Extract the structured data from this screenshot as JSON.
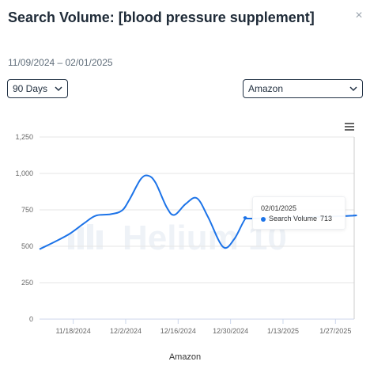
{
  "header": {
    "title": "Search Volume: [blood pressure supplement]",
    "close_glyph": "×",
    "date_range": "11/09/2024 – 02/01/2025"
  },
  "controls": {
    "days_select": "90 Days",
    "marketplace_select": "Amazon"
  },
  "icons": {
    "close": "close-icon",
    "chevron": "chevron-down-icon",
    "menu": "hamburger-menu-icon"
  },
  "watermark": "Helium 10",
  "tooltip": {
    "date": "02/01/2025",
    "series_name": "Search Volume",
    "value": "713"
  },
  "chart_data": {
    "type": "line",
    "xlabel": "Amazon",
    "ylabel": "",
    "ylim": [
      0,
      1250
    ],
    "yticks": [
      0,
      250,
      500,
      750,
      1000,
      1250
    ],
    "yticks_labels": [
      "0",
      "250",
      "500",
      "750",
      "1,000",
      "1,250"
    ],
    "xlim": [
      "2024-11-09",
      "2025-02-01"
    ],
    "xticks": [
      "2024-11-18",
      "2024-12-02",
      "2024-12-16",
      "2024-12-30",
      "2025-01-13",
      "2025-01-27"
    ],
    "xticks_labels": [
      "11/18/2024",
      "12/2/2024",
      "12/16/2024",
      "12/30/2024",
      "1/13/2025",
      "1/27/2025"
    ],
    "grid": true,
    "color": "#1c73e8",
    "series": [
      {
        "name": "Search Volume",
        "points": [
          [
            "2024-11-09",
            480
          ],
          [
            "2024-11-13",
            530
          ],
          [
            "2024-11-17",
            585
          ],
          [
            "2024-11-21",
            660
          ],
          [
            "2024-11-24",
            710
          ],
          [
            "2024-11-28",
            720
          ],
          [
            "2024-12-01",
            745
          ],
          [
            "2024-12-03",
            820
          ],
          [
            "2024-12-06",
            960
          ],
          [
            "2024-12-08",
            985
          ],
          [
            "2024-12-10",
            935
          ],
          [
            "2024-12-13",
            765
          ],
          [
            "2024-12-15",
            715
          ],
          [
            "2024-12-18",
            790
          ],
          [
            "2024-12-21",
            830
          ],
          [
            "2024-12-24",
            700
          ],
          [
            "2024-12-28",
            495
          ],
          [
            "2024-12-31",
            550
          ],
          [
            "2025-01-03",
            690
          ],
          [
            "2025-01-05",
            690
          ],
          [
            "2025-01-30",
            708
          ],
          [
            "2025-02-01",
            713
          ]
        ]
      }
    ]
  }
}
